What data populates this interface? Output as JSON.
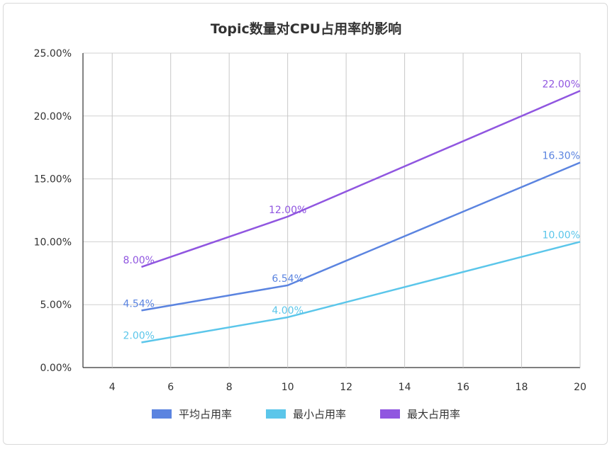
{
  "chart_data": {
    "type": "line",
    "title": "Topic数量对CPU占用率的影响",
    "x": [
      5,
      10,
      20
    ],
    "xticks": [
      4,
      6,
      8,
      10,
      12,
      14,
      16,
      18,
      20
    ],
    "xlim": [
      3,
      20
    ],
    "yticks": [
      "0.00%",
      "5.00%",
      "10.00%",
      "15.00%",
      "20.00%",
      "25.00%"
    ],
    "ylim": [
      0,
      25
    ],
    "grid": true,
    "legend_position": "bottom",
    "series": [
      {
        "name": "平均占用率",
        "color": "#5b84e0",
        "values": [
          4.54,
          6.54,
          16.3
        ],
        "labels": [
          "4.54%",
          "6.54%",
          "16.30%"
        ]
      },
      {
        "name": "最小占用率",
        "color": "#5bc6ea",
        "values": [
          2.0,
          4.0,
          10.0
        ],
        "labels": [
          "2.00%",
          "4.00%",
          "10.00%"
        ]
      },
      {
        "name": "最大占用率",
        "color": "#9056e0",
        "values": [
          8.0,
          12.0,
          22.0
        ],
        "labels": [
          "8.00%",
          "12.00%",
          "22.00%"
        ]
      }
    ]
  }
}
